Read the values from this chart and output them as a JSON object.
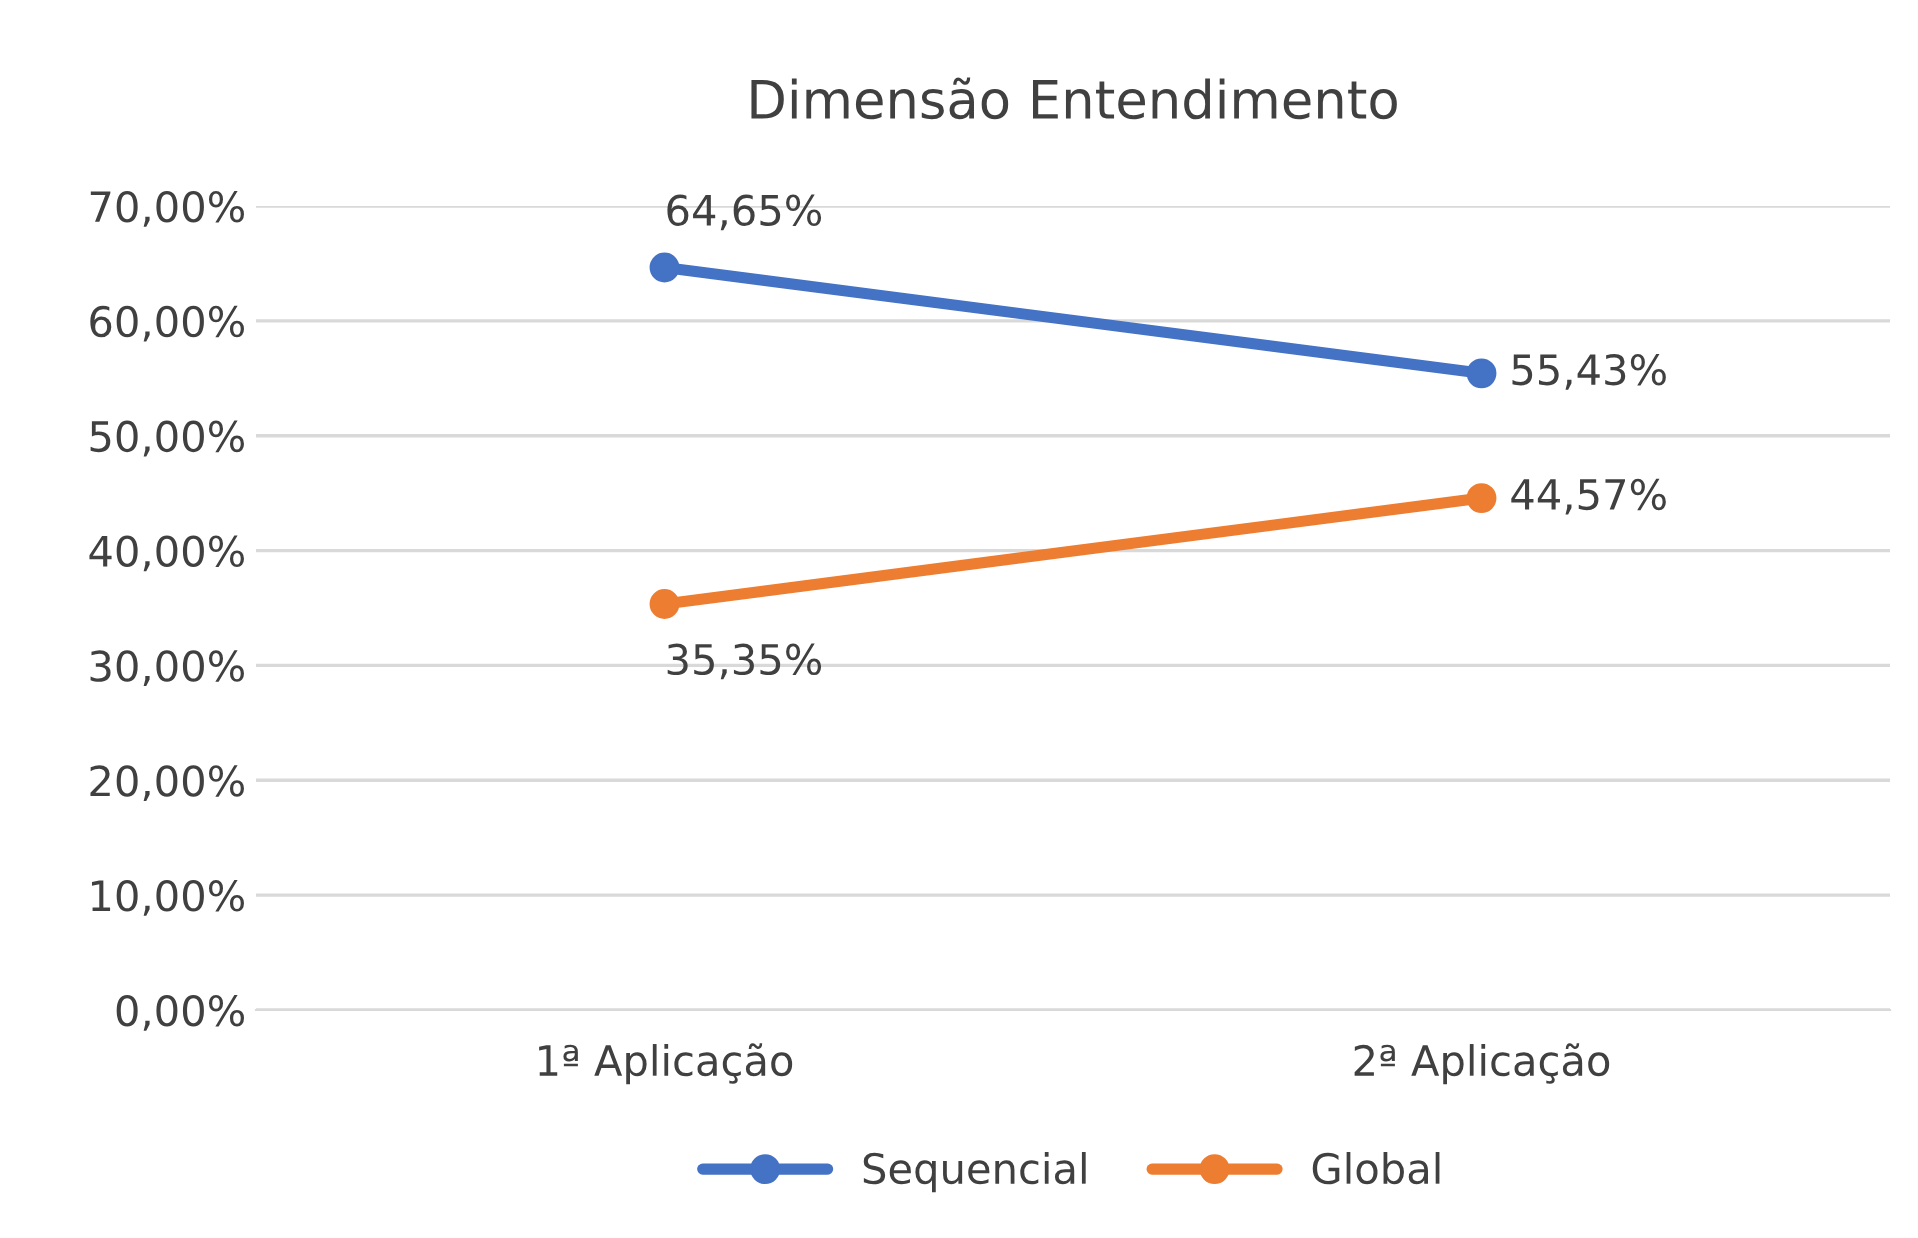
{
  "chart_data": {
    "type": "line",
    "title": "Dimensão Entendimento",
    "categories": [
      "1ª Aplicação",
      "2ª Aplicação"
    ],
    "series": [
      {
        "name": "Sequencial",
        "color": "#4472c4",
        "values": [
          64.65,
          55.43
        ],
        "value_labels": [
          "64,65%",
          "55,43%"
        ]
      },
      {
        "name": "Global",
        "color": "#ed7d31",
        "values": [
          35.35,
          44.57
        ],
        "value_labels": [
          "35,35%",
          "44,57%"
        ]
      }
    ],
    "ylim": [
      0,
      70
    ],
    "yticks": [
      {
        "value": 0,
        "label": "0,00%"
      },
      {
        "value": 10,
        "label": "10,00%"
      },
      {
        "value": 20,
        "label": "20,00%"
      },
      {
        "value": 30,
        "label": "30,00%"
      },
      {
        "value": 40,
        "label": "40,00%"
      },
      {
        "value": 50,
        "label": "50,00%"
      },
      {
        "value": 60,
        "label": "60,00%"
      },
      {
        "value": 70,
        "label": "70,00%"
      }
    ],
    "grid": "y",
    "legend": "bottom",
    "marker": "circle",
    "line_style": "solid"
  }
}
